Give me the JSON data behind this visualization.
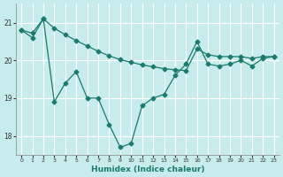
{
  "bg_color": "#c8ecec",
  "grid_color": "#ffffff",
  "line_color": "#1a7a6e",
  "xlabel": "Humidex (Indice chaleur)",
  "xlim": [
    -0.5,
    23.5
  ],
  "ylim": [
    17.5,
    21.5
  ],
  "yticks": [
    18,
    19,
    20,
    21
  ],
  "xticks": [
    0,
    1,
    2,
    3,
    4,
    5,
    6,
    7,
    8,
    9,
    10,
    11,
    12,
    13,
    14,
    15,
    16,
    17,
    18,
    19,
    20,
    21,
    22,
    23
  ],
  "line1_x": [
    0,
    1,
    2,
    3,
    4,
    5,
    6,
    7,
    8,
    9,
    10,
    11,
    12,
    13,
    14,
    15,
    16,
    17,
    18,
    19,
    20,
    21,
    22,
    23
  ],
  "line1_y": [
    20.8,
    20.72,
    21.1,
    20.85,
    20.68,
    20.52,
    20.38,
    20.24,
    20.12,
    20.02,
    19.95,
    19.88,
    19.83,
    19.78,
    19.75,
    19.73,
    20.3,
    20.15,
    20.1,
    20.1,
    20.1,
    20.05,
    20.1,
    20.1
  ],
  "line2_x": [
    0,
    1,
    2,
    3,
    4,
    5,
    6,
    7,
    8,
    9,
    10,
    11,
    12,
    13,
    14,
    15,
    16,
    17,
    18,
    19,
    20,
    21,
    22,
    23
  ],
  "line2_y": [
    20.8,
    20.6,
    21.1,
    18.9,
    19.4,
    19.7,
    19.0,
    19.0,
    18.3,
    17.7,
    17.8,
    18.8,
    19.0,
    19.1,
    19.6,
    19.9,
    20.5,
    19.9,
    19.85,
    19.9,
    20.0,
    19.85,
    20.05,
    20.1
  ],
  "marker": "D",
  "marker_size": 2.5,
  "linewidth": 0.9
}
